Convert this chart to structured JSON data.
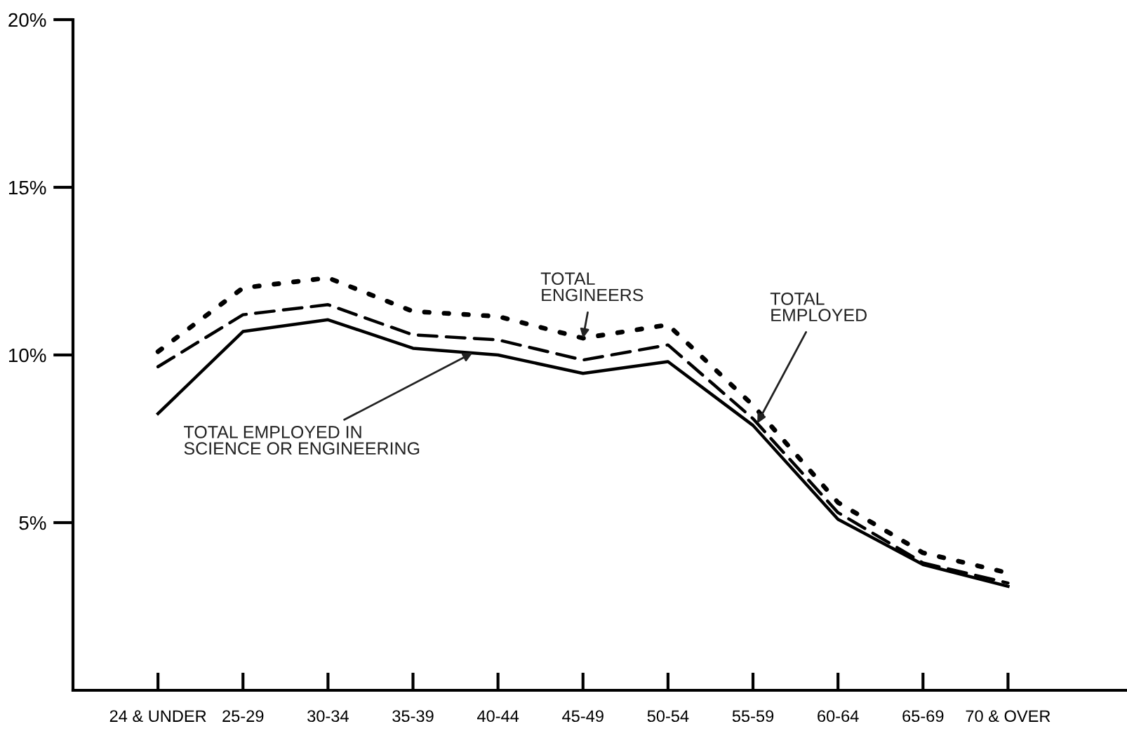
{
  "chart_data": {
    "type": "line",
    "categories": [
      "24 & UNDER",
      "25-29",
      "30-34",
      "35-39",
      "40-44",
      "45-49",
      "50-54",
      "55-59",
      "60-64",
      "65-69",
      "70 & OVER"
    ],
    "series": [
      {
        "name": "TOTAL\nENGINEERS",
        "color": "#000000",
        "line_style": "dotted",
        "values": [
          10.1,
          12.0,
          12.3,
          11.3,
          11.15,
          10.5,
          10.9,
          8.5,
          5.6,
          4.1,
          3.5
        ]
      },
      {
        "name": "TOTAL\nEMPLOYED",
        "color": "#000000",
        "line_style": "dashed",
        "values": [
          9.65,
          11.2,
          11.5,
          10.6,
          10.45,
          9.85,
          10.3,
          8.1,
          5.3,
          3.8,
          3.2
        ]
      },
      {
        "name": "TOTAL EMPLOYED IN\nSCIENCE OR ENGINEERING",
        "color": "#000000",
        "line_style": "solid",
        "values": [
          8.25,
          10.7,
          11.05,
          10.2,
          10.0,
          9.45,
          9.8,
          7.9,
          5.1,
          3.75,
          3.1
        ]
      }
    ],
    "ylim": [
      0,
      20
    ],
    "yticks": [
      {
        "value": 5,
        "label": "5%"
      },
      {
        "value": 10,
        "label": "10%"
      },
      {
        "value": 15,
        "label": "15%"
      },
      {
        "value": 20,
        "label": "20%"
      }
    ],
    "grid": false,
    "legend": false,
    "marker": "none"
  }
}
